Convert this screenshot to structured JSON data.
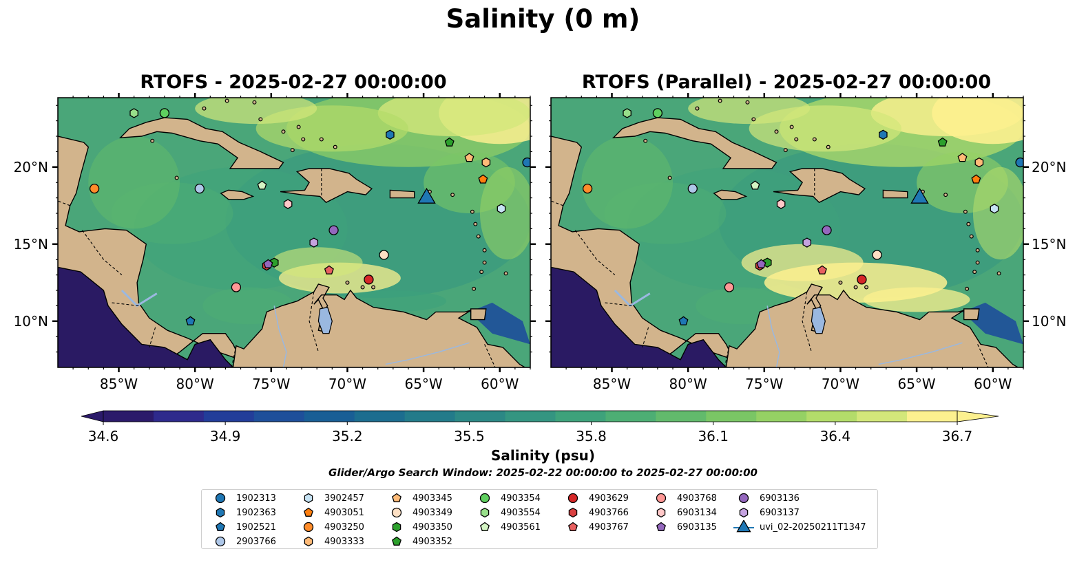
{
  "figure": {
    "title": "Salinity (0 m)",
    "window_note": "Glider/Argo Search Window: 2025-02-22 00:00:00 to 2025-02-27 00:00:00"
  },
  "panels": [
    {
      "title": "RTOFS - 2025-02-27 00:00:00"
    },
    {
      "title": "RTOFS (Parallel) - 2025-02-27 00:00:00"
    }
  ],
  "map_extent": {
    "lon": [
      -89,
      -58
    ],
    "lat": [
      7,
      24.5
    ]
  },
  "lon_ticks": [
    "85°W",
    "80°W",
    "75°W",
    "70°W",
    "65°W",
    "60°W"
  ],
  "lat_ticks": [
    "20°N",
    "15°N",
    "10°N"
  ],
  "colorbar": {
    "title": "Salinity (psu)",
    "min": 34.6,
    "max": 36.7,
    "tick_labels": [
      "34.6",
      "34.9",
      "35.2",
      "35.5",
      "35.8",
      "36.1",
      "36.4",
      "36.7"
    ],
    "colors": [
      "#2b1a6a",
      "#2e2a8c",
      "#223d99",
      "#1e4f9a",
      "#195e95",
      "#1c6d8f",
      "#237b8a",
      "#2c8885",
      "#349581",
      "#3ea27b",
      "#4dae74",
      "#62ba6c",
      "#7ac665",
      "#95d164",
      "#b3dc6a",
      "#d3e77a",
      "#fcf08f"
    ],
    "extend": "both"
  },
  "colors": {
    "land": "#d2b48c",
    "ocean_deep": "#2a1a63",
    "ocean_mid": "#4aa679",
    "ocean_salty": "#fcf08f",
    "lake": "#9ab8e0"
  },
  "legend": [
    {
      "label": "1902313",
      "marker": "circle",
      "color": "#1f77b4"
    },
    {
      "label": "1902363",
      "marker": "hexagon",
      "color": "#1f77b4"
    },
    {
      "label": "1902521",
      "marker": "pentagon",
      "color": "#1f77b4"
    },
    {
      "label": "2903766",
      "marker": "circle",
      "color": "#aec7e8"
    },
    {
      "label": "3902457",
      "marker": "hexagon",
      "color": "#c6e3f4"
    },
    {
      "label": "4903051",
      "marker": "pentagon",
      "color": "#ff7f0e"
    },
    {
      "label": "4903250",
      "marker": "circle",
      "color": "#ff8c2a"
    },
    {
      "label": "4903333",
      "marker": "hexagon",
      "color": "#ffbb78"
    },
    {
      "label": "4903345",
      "marker": "pentagon",
      "color": "#ffbb78"
    },
    {
      "label": "4903349",
      "marker": "circle",
      "color": "#fde0c4"
    },
    {
      "label": "4903350",
      "marker": "hexagon",
      "color": "#2ca02c"
    },
    {
      "label": "4903352",
      "marker": "pentagon",
      "color": "#2ca02c"
    },
    {
      "label": "4903354",
      "marker": "circle",
      "color": "#5fcf5f"
    },
    {
      "label": "4903554",
      "marker": "hexagon",
      "color": "#98df8a"
    },
    {
      "label": "4903561",
      "marker": "pentagon",
      "color": "#d4f5c4"
    },
    {
      "label": "4903629",
      "marker": "circle",
      "color": "#d62728"
    },
    {
      "label": "4903766",
      "marker": "hexagon",
      "color": "#d94040"
    },
    {
      "label": "4903767",
      "marker": "pentagon",
      "color": "#e86060"
    },
    {
      "label": "4903768",
      "marker": "circle",
      "color": "#ff9896"
    },
    {
      "label": "6903134",
      "marker": "hexagon",
      "color": "#ffc8c8"
    },
    {
      "label": "6903135",
      "marker": "pentagon",
      "color": "#9467bd"
    },
    {
      "label": "6903136",
      "marker": "circle",
      "color": "#9467bd"
    },
    {
      "label": "6903137",
      "marker": "hexagon",
      "color": "#c5a3e0"
    },
    {
      "label": "uvi_02-20250211T1347",
      "marker": "triangle",
      "color": "#1f77b4"
    }
  ],
  "observations": [
    {
      "id": "1902313",
      "lon": -58.2,
      "lat": 20.3
    },
    {
      "id": "1902363",
      "lon": -67.2,
      "lat": 22.1
    },
    {
      "id": "1902521",
      "lon": -80.3,
      "lat": 10.0
    },
    {
      "id": "2903766",
      "lon": -79.7,
      "lat": 18.6
    },
    {
      "id": "3902457",
      "lon": -59.9,
      "lat": 17.3
    },
    {
      "id": "4903051",
      "lon": -61.1,
      "lat": 19.2
    },
    {
      "id": "4903250",
      "lon": -86.6,
      "lat": 18.6
    },
    {
      "id": "4903333",
      "lon": -60.9,
      "lat": 20.3
    },
    {
      "id": "4903345",
      "lon": -62.0,
      "lat": 20.6
    },
    {
      "id": "4903349",
      "lon": -67.6,
      "lat": 14.3
    },
    {
      "id": "4903350",
      "lon": -74.8,
      "lat": 13.8
    },
    {
      "id": "4903352",
      "lon": -63.3,
      "lat": 21.6
    },
    {
      "id": "4903354",
      "lon": -82.0,
      "lat": 23.5
    },
    {
      "id": "4903554",
      "lon": -84.0,
      "lat": 23.5
    },
    {
      "id": "4903561",
      "lon": -75.6,
      "lat": 18.8
    },
    {
      "id": "4903629",
      "lon": -68.6,
      "lat": 12.7
    },
    {
      "id": "4903766",
      "lon": -75.3,
      "lat": 13.6
    },
    {
      "id": "4903767",
      "lon": -71.2,
      "lat": 13.3
    },
    {
      "id": "4903768",
      "lon": -77.3,
      "lat": 12.2
    },
    {
      "id": "6903134",
      "lon": -73.9,
      "lat": 17.6
    },
    {
      "id": "6903135",
      "lon": -75.2,
      "lat": 13.7
    },
    {
      "id": "6903136",
      "lon": -70.9,
      "lat": 15.9
    },
    {
      "id": "6903137",
      "lon": -72.2,
      "lat": 15.1
    },
    {
      "id": "uvi_02-20250211T1347",
      "lon": -64.8,
      "lat": 18.1
    }
  ]
}
